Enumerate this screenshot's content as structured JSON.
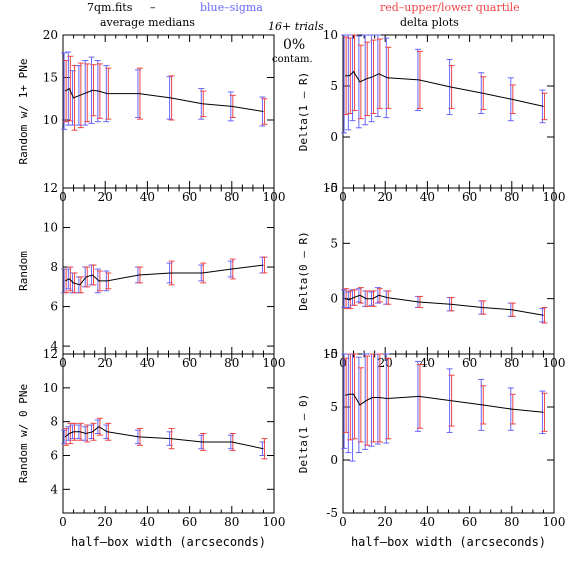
{
  "header": {
    "file": "7qm.fits",
    "dash": "–",
    "blue_note": "blue–sigma",
    "red_note": "red–upper/lower quartile",
    "left_col": "average medians",
    "right_col": "delta plots",
    "trials": "16+ trials",
    "contam_pct": "0%",
    "contam_label": "contam."
  },
  "colors": {
    "blue": "#6666ff",
    "red": "#ee4444",
    "purple": "#b060b0",
    "line": "#000000"
  },
  "chart_data": [
    {
      "type": "line",
      "ylabel": "Random w/ 1+ PNe",
      "xlabel": "",
      "xlim": [
        0,
        100
      ],
      "ylim": [
        2,
        20
      ],
      "xticks": [
        0,
        20,
        40,
        60,
        80,
        100
      ],
      "yticks": [
        10,
        15,
        20
      ],
      "x": [
        1,
        3,
        5,
        8,
        11,
        14,
        17,
        21,
        36,
        51,
        66,
        80,
        95
      ],
      "y": [
        13.4,
        13.7,
        12.6,
        12.9,
        13.2,
        13.5,
        13.4,
        13.1,
        13.1,
        12.6,
        11.9,
        11.6,
        11.0
      ],
      "sigma": [
        4.5,
        4.3,
        3.2,
        3.5,
        3.8,
        3.9,
        3.6,
        3.3,
        2.8,
        2.5,
        1.8,
        1.7,
        1.7
      ],
      "quartile": [
        3.6,
        3.8,
        3.8,
        3.8,
        3.4,
        3.0,
        3.2,
        3.0,
        3.0,
        2.6,
        1.5,
        1.3,
        1.5
      ]
    },
    {
      "type": "line",
      "ylabel": "Delta(1 – R)",
      "xlabel": "",
      "xlim": [
        0,
        100
      ],
      "ylim": [
        -5,
        10
      ],
      "xticks": [
        0,
        20,
        40,
        60,
        80,
        100
      ],
      "yticks": [
        -5,
        0,
        5,
        10
      ],
      "x": [
        1,
        3,
        5,
        8,
        11,
        14,
        17,
        21,
        36,
        51,
        66,
        80,
        95
      ],
      "y": [
        6.0,
        6.0,
        6.4,
        5.4,
        5.7,
        5.9,
        6.2,
        5.8,
        5.6,
        4.9,
        4.3,
        3.7,
        3.0
      ],
      "sigma": [
        5.6,
        5.3,
        4.8,
        4.5,
        4.5,
        4.4,
        4.2,
        3.9,
        3.0,
        2.7,
        2.0,
        2.1,
        1.6
      ],
      "quartile": [
        3.8,
        3.7,
        3.8,
        3.6,
        3.6,
        3.6,
        3.4,
        3.0,
        2.8,
        2.1,
        1.6,
        1.4,
        1.3
      ]
    },
    {
      "type": "line",
      "ylabel": "Random",
      "xlabel": "",
      "xlim": [
        0,
        100
      ],
      "ylim": [
        3.6,
        12
      ],
      "xticks": [
        0,
        20,
        40,
        60,
        80,
        100
      ],
      "yticks": [
        4,
        6,
        8,
        10,
        12
      ],
      "x": [
        1,
        3,
        5,
        8,
        11,
        14,
        17,
        21,
        36,
        51,
        66,
        80,
        95
      ],
      "y": [
        7.3,
        7.4,
        7.2,
        7.1,
        7.5,
        7.6,
        7.3,
        7.3,
        7.6,
        7.7,
        7.7,
        7.9,
        8.1
      ],
      "sigma": [
        0.6,
        0.5,
        0.5,
        0.4,
        0.5,
        0.5,
        0.6,
        0.5,
        0.4,
        0.5,
        0.4,
        0.4,
        0.4
      ],
      "quartile": [
        0.6,
        0.6,
        0.5,
        0.4,
        0.5,
        0.5,
        0.5,
        0.4,
        0.4,
        0.6,
        0.5,
        0.5,
        0.4
      ]
    },
    {
      "type": "line",
      "ylabel": "Delta(0 – R)",
      "xlabel": "",
      "xlim": [
        0,
        100
      ],
      "ylim": [
        -5,
        10
      ],
      "xticks": [
        0,
        20,
        40,
        60,
        80,
        100
      ],
      "yticks": [
        -5,
        0,
        5,
        10
      ],
      "x": [
        1,
        3,
        5,
        8,
        11,
        14,
        17,
        21,
        36,
        51,
        66,
        80,
        95
      ],
      "y": [
        0.0,
        -0.1,
        0.1,
        0.3,
        0.0,
        0.0,
        0.3,
        0.1,
        -0.3,
        -0.5,
        -0.8,
        -1.0,
        -1.5
      ],
      "sigma": [
        0.8,
        0.7,
        0.7,
        0.6,
        0.7,
        0.6,
        0.7,
        0.6,
        0.5,
        0.6,
        0.6,
        0.6,
        0.6
      ],
      "quartile": [
        0.9,
        0.8,
        0.7,
        0.7,
        0.7,
        0.7,
        0.6,
        0.6,
        0.5,
        0.6,
        0.6,
        0.6,
        0.7
      ]
    },
    {
      "type": "line",
      "ylabel": "Random w/ 0 PNe",
      "xlabel": "half–box width (arcseconds)",
      "xlim": [
        0,
        100
      ],
      "ylim": [
        2.6,
        12
      ],
      "xticks": [
        0,
        20,
        40,
        60,
        80,
        100
      ],
      "yticks": [
        4,
        6,
        8,
        10,
        12
      ],
      "x": [
        1,
        3,
        5,
        8,
        11,
        14,
        17,
        21,
        36,
        51,
        66,
        80,
        95
      ],
      "y": [
        7.1,
        7.3,
        7.4,
        7.4,
        7.3,
        7.4,
        7.7,
        7.4,
        7.1,
        7.0,
        6.8,
        6.8,
        6.4
      ],
      "sigma": [
        0.4,
        0.4,
        0.4,
        0.4,
        0.4,
        0.4,
        0.4,
        0.4,
        0.4,
        0.4,
        0.4,
        0.4,
        0.4
      ],
      "quartile": [
        0.5,
        0.6,
        0.5,
        0.5,
        0.5,
        0.5,
        0.5,
        0.5,
        0.5,
        0.6,
        0.5,
        0.5,
        0.6
      ]
    },
    {
      "type": "line",
      "ylabel": "Delta(1 – 0)",
      "xlabel": "half–box width (arcseconds)",
      "xlim": [
        0,
        100
      ],
      "ylim": [
        -5,
        10
      ],
      "xticks": [
        0,
        20,
        40,
        60,
        80,
        100
      ],
      "yticks": [
        -5,
        0,
        5,
        10
      ],
      "x": [
        1,
        3,
        5,
        8,
        11,
        14,
        17,
        21,
        36,
        51,
        66,
        80,
        95
      ],
      "y": [
        6.1,
        6.2,
        6.2,
        5.2,
        5.6,
        5.9,
        5.9,
        5.8,
        6.0,
        5.6,
        5.2,
        4.8,
        4.5
      ],
      "sigma": [
        5.0,
        5.5,
        6.3,
        4.5,
        4.6,
        4.6,
        4.4,
        4.2,
        3.3,
        3.0,
        2.4,
        2.0,
        2.0
      ],
      "quartile": [
        3.5,
        4.3,
        4.2,
        3.5,
        4.2,
        4.2,
        4.2,
        3.8,
        3.0,
        2.4,
        1.8,
        1.4,
        1.8
      ]
    }
  ]
}
